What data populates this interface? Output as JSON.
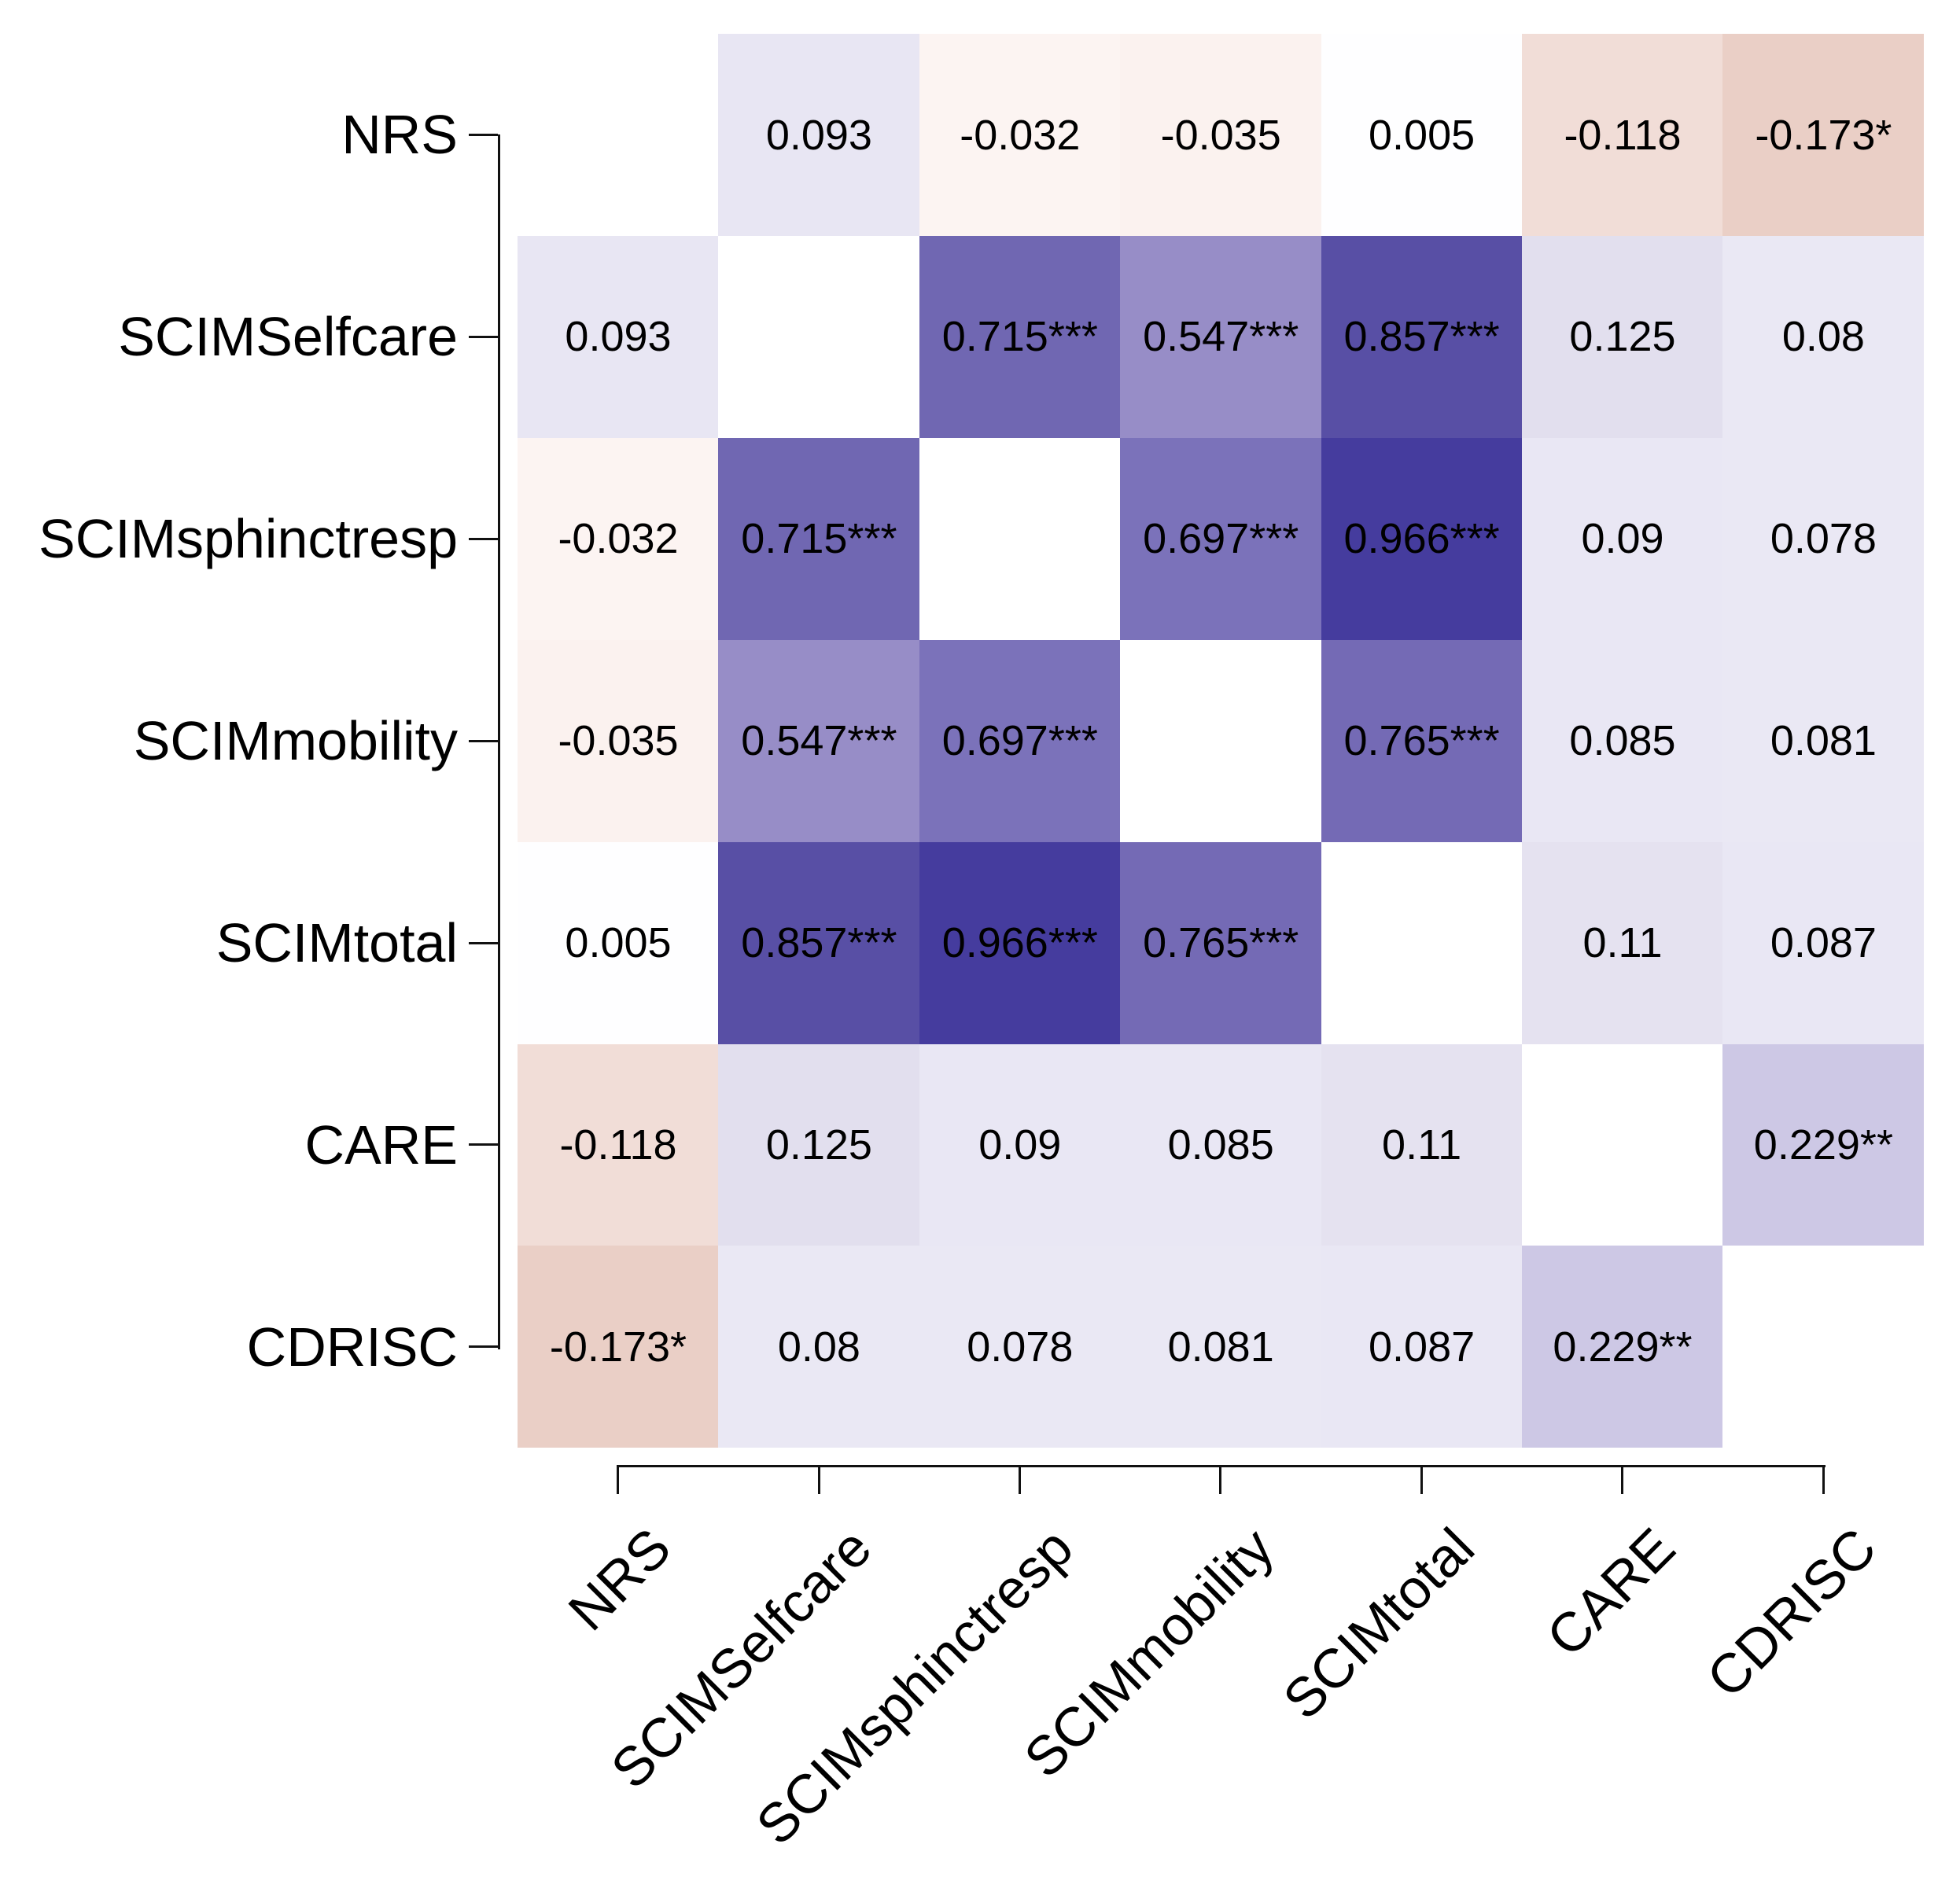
{
  "figure": {
    "kind": "correlation-matrix-heatmap",
    "background_color": "#ffffff",
    "text_color": "#000000",
    "axis_color": "#111111",
    "positive_max_color": "#453c9e",
    "negative_color": "#eacfc6",
    "significance_note_shown": false
  },
  "chart_data": {
    "type": "heatmap",
    "title": "",
    "xlabel": "",
    "ylabel": "",
    "grid": false,
    "legend_position": "none",
    "categories": [
      "NRS",
      "SCIMSelfcare",
      "SCIMsphinctresp",
      "SCIMmobility",
      "SCIMtotal",
      "CARE",
      "CDRISC"
    ],
    "matrix": [
      [
        null,
        0.093,
        -0.032,
        -0.035,
        0.005,
        -0.118,
        -0.173
      ],
      [
        0.093,
        null,
        0.715,
        0.547,
        0.857,
        0.125,
        0.08
      ],
      [
        -0.032,
        0.715,
        null,
        0.697,
        0.966,
        0.09,
        0.078
      ],
      [
        -0.035,
        0.547,
        0.697,
        null,
        0.765,
        0.085,
        0.081
      ],
      [
        0.005,
        0.857,
        0.966,
        0.765,
        null,
        0.11,
        0.087
      ],
      [
        -0.118,
        0.125,
        0.09,
        0.085,
        0.11,
        null,
        0.229
      ],
      [
        -0.173,
        0.08,
        0.078,
        0.081,
        0.087,
        0.229,
        null
      ]
    ],
    "display": [
      [
        "",
        "0.093",
        "-0.032",
        "-0.035",
        "0.005",
        "-0.118",
        "-0.173*"
      ],
      [
        "0.093",
        "",
        "0.715***",
        "0.547***",
        "0.857***",
        "0.125",
        "0.08"
      ],
      [
        "-0.032",
        "0.715***",
        "",
        "0.697***",
        "0.966***",
        "0.09",
        "0.078"
      ],
      [
        "-0.035",
        "0.547***",
        "0.697***",
        "",
        "0.765***",
        "0.085",
        "0.081"
      ],
      [
        "0.005",
        "0.857***",
        "0.966***",
        "0.765***",
        "",
        "0.11",
        "0.087"
      ],
      [
        "-0.118",
        "0.125",
        "0.09",
        "0.085",
        "0.11",
        "",
        "0.229**"
      ],
      [
        "-0.173*",
        "0.08",
        "0.078",
        "0.081",
        "0.087",
        "0.229**",
        ""
      ]
    ],
    "cell_colors": [
      [
        "#ffffff",
        "#e8e6f3",
        "#fcf4f2",
        "#fbf2ef",
        "#fefeff",
        "#f1ddd7",
        "#eacfc6"
      ],
      [
        "#e8e6f3",
        "#ffffff",
        "#7067b2",
        "#978dc7",
        "#584fa5",
        "#e2dfee",
        "#eae8f4"
      ],
      [
        "#fcf4f2",
        "#7067b2",
        "#ffffff",
        "#7b72ba",
        "#453c9e",
        "#e9e7f4",
        "#eae8f4"
      ],
      [
        "#fbf2ef",
        "#978dc7",
        "#7b72ba",
        "#ffffff",
        "#746ab5",
        "#e9e7f4",
        "#eae8f4"
      ],
      [
        "#fefeff",
        "#584fa5",
        "#453c9e",
        "#746ab5",
        "#ffffff",
        "#e5e2f0",
        "#e9e7f4"
      ],
      [
        "#f1ddd7",
        "#e2dfee",
        "#e9e7f4",
        "#e9e7f4",
        "#e5e2f0",
        "#ffffff",
        "#cdc8e5"
      ],
      [
        "#eacfc6",
        "#eae8f4",
        "#eae8f4",
        "#eae8f4",
        "#e9e7f4",
        "#cdc8e5",
        "#ffffff"
      ]
    ]
  },
  "y_axis": {
    "labels": [
      "NRS",
      "SCIMSelfcare",
      "SCIMsphinctresp",
      "SCIMmobility",
      "SCIMtotal",
      "CARE",
      "CDRISC"
    ]
  },
  "x_axis": {
    "labels": [
      "NRS",
      "SCIMSelfcare",
      "SCIMsphinctresp",
      "SCIMmobility",
      "SCIMtotal",
      "CARE",
      "CDRISC"
    ],
    "label_rotation_deg": 45
  }
}
